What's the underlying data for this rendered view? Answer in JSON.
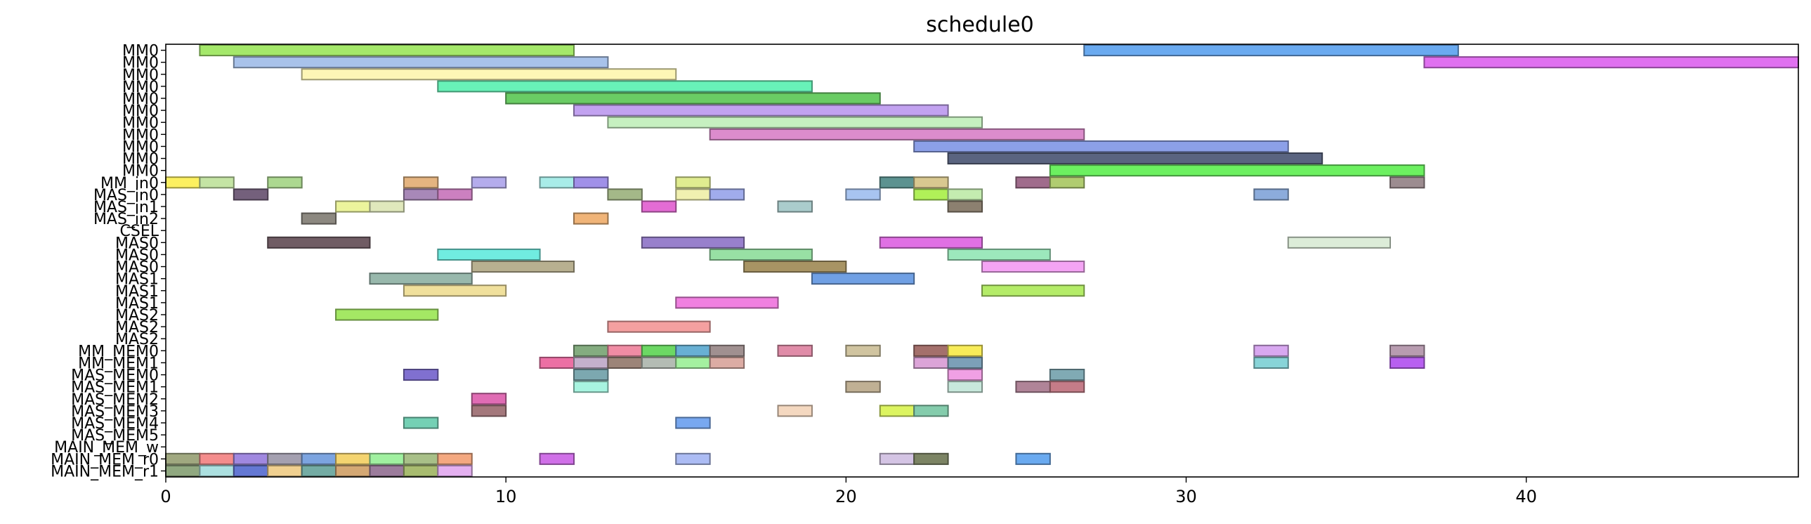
{
  "chart_data": {
    "type": "gantt",
    "title": "schedule0",
    "xlim": [
      0,
      48
    ],
    "xticks": [
      0,
      10,
      20,
      30,
      40
    ],
    "xtick_labels": [
      "0",
      "10",
      "20",
      "30",
      "40"
    ],
    "rows": [
      "MM0",
      "MM0",
      "MM0",
      "MM0",
      "MM0",
      "MM0",
      "MM0",
      "MM0",
      "MM0",
      "MM0",
      "MM0",
      "MM_in0",
      "MAS_in0",
      "MAS_in1",
      "MAS_in2",
      "CSEL",
      "MAS0",
      "MAS0",
      "MAS0",
      "MAS1",
      "MAS1",
      "MAS1",
      "MAS2",
      "MAS2",
      "MAS2",
      "MM_MEM0",
      "MM_MEM1",
      "MAS_MEM0",
      "MAS_MEM1",
      "MAS_MEM2",
      "MAS_MEM3",
      "MAS_MEM4",
      "MAS_MEM5",
      "MAIN_MEM_w",
      "MAIN_MEM_r0",
      "MAIN_MEM_r1"
    ],
    "bars": [
      {
        "row": 0,
        "start": 1,
        "end": 12,
        "color": "#a4e86a"
      },
      {
        "row": 0,
        "start": 27,
        "end": 38,
        "color": "#6aaaf0"
      },
      {
        "row": 1,
        "start": 2,
        "end": 13,
        "color": "#a8c2ea"
      },
      {
        "row": 1,
        "start": 37,
        "end": 48,
        "color": "#e070f0"
      },
      {
        "row": 2,
        "start": 4,
        "end": 15,
        "color": "#fdf6b6"
      },
      {
        "row": 3,
        "start": 8,
        "end": 19,
        "color": "#68f2b8"
      },
      {
        "row": 4,
        "start": 10,
        "end": 21,
        "color": "#6acc64"
      },
      {
        "row": 5,
        "start": 12,
        "end": 23,
        "color": "#c2a2f0"
      },
      {
        "row": 6,
        "start": 13,
        "end": 24,
        "color": "#c6f0c0"
      },
      {
        "row": 7,
        "start": 16,
        "end": 27,
        "color": "#dc8ccc"
      },
      {
        "row": 8,
        "start": 22,
        "end": 33,
        "color": "#8ca0e8"
      },
      {
        "row": 9,
        "start": 23,
        "end": 34,
        "color": "#5a6480"
      },
      {
        "row": 10,
        "start": 26,
        "end": 37,
        "color": "#6cf060"
      },
      {
        "row": 11,
        "start": 0,
        "end": 1,
        "color": "#fcf060"
      },
      {
        "row": 11,
        "start": 1,
        "end": 2,
        "color": "#c4e4a4"
      },
      {
        "row": 11,
        "start": 3,
        "end": 4,
        "color": "#acd890"
      },
      {
        "row": 11,
        "start": 7,
        "end": 8,
        "color": "#e4b480"
      },
      {
        "row": 11,
        "start": 9,
        "end": 10,
        "color": "#b4acec"
      },
      {
        "row": 11,
        "start": 11,
        "end": 12,
        "color": "#a8ece8"
      },
      {
        "row": 11,
        "start": 12,
        "end": 13,
        "color": "#a090e8"
      },
      {
        "row": 11,
        "start": 15,
        "end": 16,
        "color": "#e0ec90"
      },
      {
        "row": 11,
        "start": 21,
        "end": 22,
        "color": "#5c9290"
      },
      {
        "row": 11,
        "start": 22,
        "end": 23,
        "color": "#d8c890"
      },
      {
        "row": 11,
        "start": 25,
        "end": 26,
        "color": "#a06c8c"
      },
      {
        "row": 11,
        "start": 26,
        "end": 27,
        "color": "#b0cc70"
      },
      {
        "row": 11,
        "start": 36,
        "end": 37,
        "color": "#9c8c90"
      },
      {
        "row": 12,
        "start": 2,
        "end": 3,
        "color": "#74607c"
      },
      {
        "row": 12,
        "start": 7,
        "end": 8,
        "color": "#a888b8"
      },
      {
        "row": 12,
        "start": 8,
        "end": 9,
        "color": "#cc80c0"
      },
      {
        "row": 12,
        "start": 13,
        "end": 14,
        "color": "#a4b888"
      },
      {
        "row": 12,
        "start": 15,
        "end": 16,
        "color": "#f0f0b0"
      },
      {
        "row": 12,
        "start": 16,
        "end": 17,
        "color": "#a0acec"
      },
      {
        "row": 12,
        "start": 20,
        "end": 21,
        "color": "#a8c4f0"
      },
      {
        "row": 12,
        "start": 22,
        "end": 23,
        "color": "#b0f058"
      },
      {
        "row": 12,
        "start": 23,
        "end": 24,
        "color": "#c4ecb0"
      },
      {
        "row": 12,
        "start": 32,
        "end": 33,
        "color": "#8cacdc"
      },
      {
        "row": 13,
        "start": 5,
        "end": 6,
        "color": "#ecf49c"
      },
      {
        "row": 13,
        "start": 6,
        "end": 7,
        "color": "#e0e8bc"
      },
      {
        "row": 13,
        "start": 14,
        "end": 15,
        "color": "#e46cd4"
      },
      {
        "row": 13,
        "start": 18,
        "end": 19,
        "color": "#aacccc"
      },
      {
        "row": 13,
        "start": 23,
        "end": 24,
        "color": "#8c8070"
      },
      {
        "row": 14,
        "start": 4,
        "end": 5,
        "color": "#8c8880"
      },
      {
        "row": 14,
        "start": 12,
        "end": 13,
        "color": "#f0b478"
      },
      {
        "row": 16,
        "start": 3,
        "end": 6,
        "color": "#705c64"
      },
      {
        "row": 16,
        "start": 14,
        "end": 17,
        "color": "#9880cc"
      },
      {
        "row": 16,
        "start": 21,
        "end": 24,
        "color": "#e070e4"
      },
      {
        "row": 16,
        "start": 33,
        "end": 36,
        "color": "#dcecd8"
      },
      {
        "row": 17,
        "start": 8,
        "end": 11,
        "color": "#70ece0"
      },
      {
        "row": 17,
        "start": 16,
        "end": 19,
        "color": "#98e0a4"
      },
      {
        "row": 17,
        "start": 23,
        "end": 26,
        "color": "#9ce8bc"
      },
      {
        "row": 18,
        "start": 9,
        "end": 12,
        "color": "#b8b090"
      },
      {
        "row": 18,
        "start": 17,
        "end": 20,
        "color": "#a89464"
      },
      {
        "row": 18,
        "start": 24,
        "end": 27,
        "color": "#f4a4f4"
      },
      {
        "row": 19,
        "start": 6,
        "end": 9,
        "color": "#98b8ac"
      },
      {
        "row": 19,
        "start": 19,
        "end": 22,
        "color": "#70a0e4"
      },
      {
        "row": 20,
        "start": 7,
        "end": 10,
        "color": "#f0e09c"
      },
      {
        "row": 20,
        "start": 24,
        "end": 27,
        "color": "#b4ec68"
      },
      {
        "row": 21,
        "start": 15,
        "end": 18,
        "color": "#f080e0"
      },
      {
        "row": 22,
        "start": 5,
        "end": 8,
        "color": "#a4e864"
      },
      {
        "row": 23,
        "start": 13,
        "end": 16,
        "color": "#f4a0a0"
      },
      {
        "row": 25,
        "start": 12,
        "end": 13,
        "color": "#84ac80"
      },
      {
        "row": 25,
        "start": 13,
        "end": 14,
        "color": "#f08ca4"
      },
      {
        "row": 25,
        "start": 14,
        "end": 15,
        "color": "#6cd864"
      },
      {
        "row": 25,
        "start": 15,
        "end": 16,
        "color": "#68b0d4"
      },
      {
        "row": 25,
        "start": 16,
        "end": 17,
        "color": "#a09090"
      },
      {
        "row": 25,
        "start": 18,
        "end": 19,
        "color": "#e08ca8"
      },
      {
        "row": 25,
        "start": 20,
        "end": 21,
        "color": "#d0c4a0"
      },
      {
        "row": 25,
        "start": 22,
        "end": 23,
        "color": "#a4706c"
      },
      {
        "row": 25,
        "start": 23,
        "end": 24,
        "color": "#f8ec58"
      },
      {
        "row": 25,
        "start": 32,
        "end": 33,
        "color": "#d8a8f0"
      },
      {
        "row": 25,
        "start": 36,
        "end": 37,
        "color": "#b89cb0"
      },
      {
        "row": 26,
        "start": 11,
        "end": 12,
        "color": "#ec70a4"
      },
      {
        "row": 26,
        "start": 12,
        "end": 13,
        "color": "#c4b0cc"
      },
      {
        "row": 26,
        "start": 13,
        "end": 14,
        "color": "#9c8478"
      },
      {
        "row": 26,
        "start": 14,
        "end": 15,
        "color": "#b4bcb4"
      },
      {
        "row": 26,
        "start": 15,
        "end": 16,
        "color": "#a4f0a0"
      },
      {
        "row": 26,
        "start": 16,
        "end": 17,
        "color": "#dcaca4"
      },
      {
        "row": 26,
        "start": 22,
        "end": 23,
        "color": "#dca4d8"
      },
      {
        "row": 26,
        "start": 23,
        "end": 24,
        "color": "#7ca0b8"
      },
      {
        "row": 26,
        "start": 32,
        "end": 33,
        "color": "#88d4d8"
      },
      {
        "row": 26,
        "start": 36,
        "end": 37,
        "color": "#b860f0"
      },
      {
        "row": 27,
        "start": 7,
        "end": 8,
        "color": "#8070d0"
      },
      {
        "row": 27,
        "start": 12,
        "end": 13,
        "color": "#7ca8b0"
      },
      {
        "row": 27,
        "start": 23,
        "end": 24,
        "color": "#f0a0e4"
      },
      {
        "row": 27,
        "start": 26,
        "end": 27,
        "color": "#80aab4"
      },
      {
        "row": 28,
        "start": 12,
        "end": 13,
        "color": "#a8f4e0"
      },
      {
        "row": 28,
        "start": 20,
        "end": 21,
        "color": "#c0b094"
      },
      {
        "row": 28,
        "start": 23,
        "end": 24,
        "color": "#c8e8dc"
      },
      {
        "row": 28,
        "start": 25,
        "end": 26,
        "color": "#b08498"
      },
      {
        "row": 28,
        "start": 26,
        "end": 27,
        "color": "#c47c88"
      },
      {
        "row": 29,
        "start": 9,
        "end": 10,
        "color": "#e06cb4"
      },
      {
        "row": 30,
        "start": 9,
        "end": 10,
        "color": "#a4787c"
      },
      {
        "row": 30,
        "start": 18,
        "end": 19,
        "color": "#f4d8c0"
      },
      {
        "row": 30,
        "start": 21,
        "end": 22,
        "color": "#dcf460"
      },
      {
        "row": 30,
        "start": 22,
        "end": 23,
        "color": "#84ccac"
      },
      {
        "row": 31,
        "start": 7,
        "end": 8,
        "color": "#74d0b4"
      },
      {
        "row": 31,
        "start": 15,
        "end": 16,
        "color": "#78a8f0"
      },
      {
        "row": 34,
        "start": 0,
        "end": 1,
        "color": "#a0a880"
      },
      {
        "row": 34,
        "start": 1,
        "end": 2,
        "color": "#f48c8c"
      },
      {
        "row": 34,
        "start": 2,
        "end": 3,
        "color": "#a088e0"
      },
      {
        "row": 34,
        "start": 3,
        "end": 4,
        "color": "#a4a0b0"
      },
      {
        "row": 34,
        "start": 4,
        "end": 5,
        "color": "#7ca4e0"
      },
      {
        "row": 34,
        "start": 5,
        "end": 6,
        "color": "#f4d470"
      },
      {
        "row": 34,
        "start": 6,
        "end": 7,
        "color": "#a0f0a0"
      },
      {
        "row": 34,
        "start": 7,
        "end": 8,
        "color": "#a8c088"
      },
      {
        "row": 34,
        "start": 8,
        "end": 9,
        "color": "#f4a880"
      },
      {
        "row": 34,
        "start": 11,
        "end": 12,
        "color": "#d070e8"
      },
      {
        "row": 34,
        "start": 15,
        "end": 16,
        "color": "#acbcf4"
      },
      {
        "row": 34,
        "start": 21,
        "end": 22,
        "color": "#d4c4e4"
      },
      {
        "row": 34,
        "start": 22,
        "end": 23,
        "color": "#7c8464"
      },
      {
        "row": 34,
        "start": 25,
        "end": 26,
        "color": "#6aaaf0"
      },
      {
        "row": 35,
        "start": 0,
        "end": 1,
        "color": "#90a880"
      },
      {
        "row": 35,
        "start": 1,
        "end": 2,
        "color": "#ace0e0"
      },
      {
        "row": 35,
        "start": 2,
        "end": 3,
        "color": "#6478d4"
      },
      {
        "row": 35,
        "start": 3,
        "end": 4,
        "color": "#f0d090"
      },
      {
        "row": 35,
        "start": 4,
        "end": 5,
        "color": "#74aca4"
      },
      {
        "row": 35,
        "start": 5,
        "end": 6,
        "color": "#d4a874"
      },
      {
        "row": 35,
        "start": 6,
        "end": 7,
        "color": "#9c7c9c"
      },
      {
        "row": 35,
        "start": 7,
        "end": 8,
        "color": "#a8bc70"
      },
      {
        "row": 35,
        "start": 8,
        "end": 9,
        "color": "#e4b0f0"
      }
    ]
  }
}
